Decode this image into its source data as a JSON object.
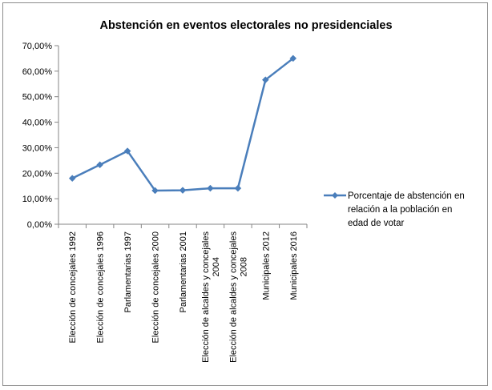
{
  "chart_data": {
    "type": "line",
    "title": "Abstención en eventos electorales no presidenciales",
    "xlabel": "",
    "ylabel": "",
    "categories": [
      [
        "Elección de concejales 1992"
      ],
      [
        "Elección de concejales 1996"
      ],
      [
        "Parlamentarias 1997"
      ],
      [
        "Elección de concejales 2000"
      ],
      [
        "Parlamentarias 2001"
      ],
      [
        "Elección de alcaldes y concejales",
        "2004"
      ],
      [
        "Elección de alcaldes y concejales",
        "2008"
      ],
      [
        "Municipales 2012"
      ],
      [
        "Municipales 2016"
      ]
    ],
    "series": [
      {
        "name": [
          "Porcentaje de abstención en",
          "relación a la población en",
          "edad de votar"
        ],
        "color": "#4a7ebb",
        "marker": "diamond",
        "values": [
          18.0,
          23.3,
          28.7,
          13.2,
          13.3,
          14.1,
          14.1,
          56.6,
          65.0
        ]
      }
    ],
    "yticks": [
      "0,00%",
      "10,00%",
      "20,00%",
      "30,00%",
      "40,00%",
      "50,00%",
      "60,00%",
      "70,00%"
    ],
    "ylim": [
      0,
      70
    ],
    "grid": false,
    "legend_position": "right"
  }
}
